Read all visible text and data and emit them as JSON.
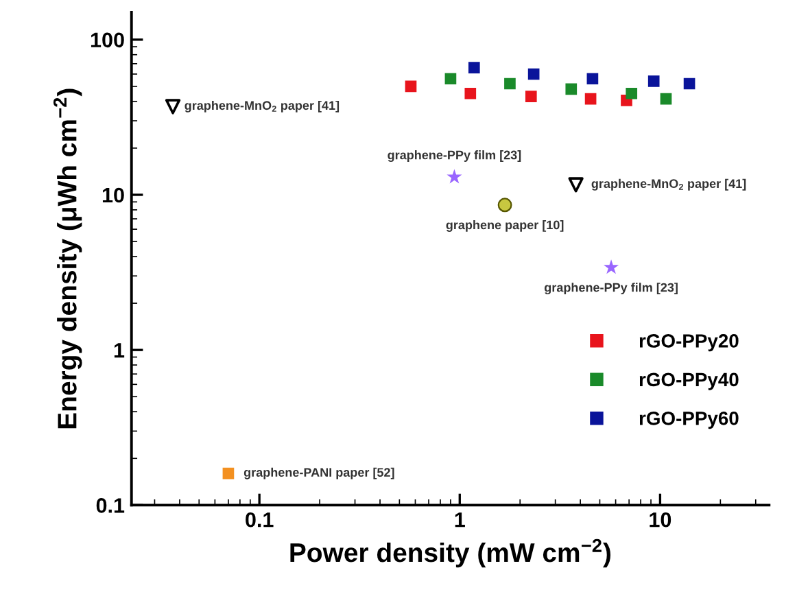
{
  "chart_data": {
    "type": "scatter",
    "xlabel": "Power density (mW cm$^{−2}$)",
    "ylabel": "Energy density (μWh cm$^{−2}$)",
    "log": "xy",
    "xlim": [
      0.023,
      35
    ],
    "ylim": [
      0.1,
      150
    ],
    "xticks": [
      0.1,
      1,
      10
    ],
    "yticks": [
      0.1,
      1,
      10,
      100
    ],
    "legend": "bottom right",
    "grid": false,
    "series": [
      {
        "name": "rGO-PPy20",
        "color": "#e8141c",
        "marker": "square",
        "x": [
          0.57,
          1.13,
          2.27,
          4.5,
          6.8
        ],
        "values": [
          50,
          45,
          43,
          41.5,
          40.6
        ]
      },
      {
        "name": "rGO-PPy40",
        "color": "#1a8a2a",
        "marker": "square",
        "x": [
          0.9,
          1.78,
          3.6,
          7.2,
          10.7
        ],
        "values": [
          56,
          52,
          48,
          45,
          41.5
        ]
      },
      {
        "name": "rGO-PPy60",
        "color": "#0a149a",
        "marker": "square",
        "x": [
          1.18,
          2.34,
          4.6,
          9.3,
          14
        ],
        "values": [
          66,
          60,
          56,
          54,
          52
        ]
      },
      {
        "color": "#000000",
        "marker": "triangle",
        "x": [
          0.037,
          3.8
        ],
        "values": [
          37,
          11.6
        ]
      },
      {
        "color": "#9966ff",
        "marker": "star",
        "x": [
          0.94,
          5.7
        ],
        "values": [
          13,
          3.4
        ]
      },
      {
        "color": "#c8c840",
        "marker": "circle",
        "x": [
          1.68
        ],
        "values": [
          8.6
        ]
      },
      {
        "color": "#f39020",
        "marker": "square",
        "x": [
          0.07
        ],
        "values": [
          0.16
        ]
      }
    ],
    "annotations": [
      {
        "text": "graphene-MnO$_{2}$ paper [41]",
        "x": 0.037,
        "y": 37
      },
      {
        "text": "graphene-PPy film [23]",
        "x": 0.94,
        "y": 13
      },
      {
        "text": "graphene-MnO$_{2}$ paper [41]",
        "x": 3.8,
        "y": 11.6
      },
      {
        "text": "graphene paper [10]",
        "x": 1.68,
        "y": 8.6
      },
      {
        "text": "graphene-PPy film [23]",
        "x": 5.7,
        "y": 3.4
      },
      {
        "text": "graphene-PANI paper [52]",
        "x": 0.07,
        "y": 0.16
      }
    ]
  }
}
